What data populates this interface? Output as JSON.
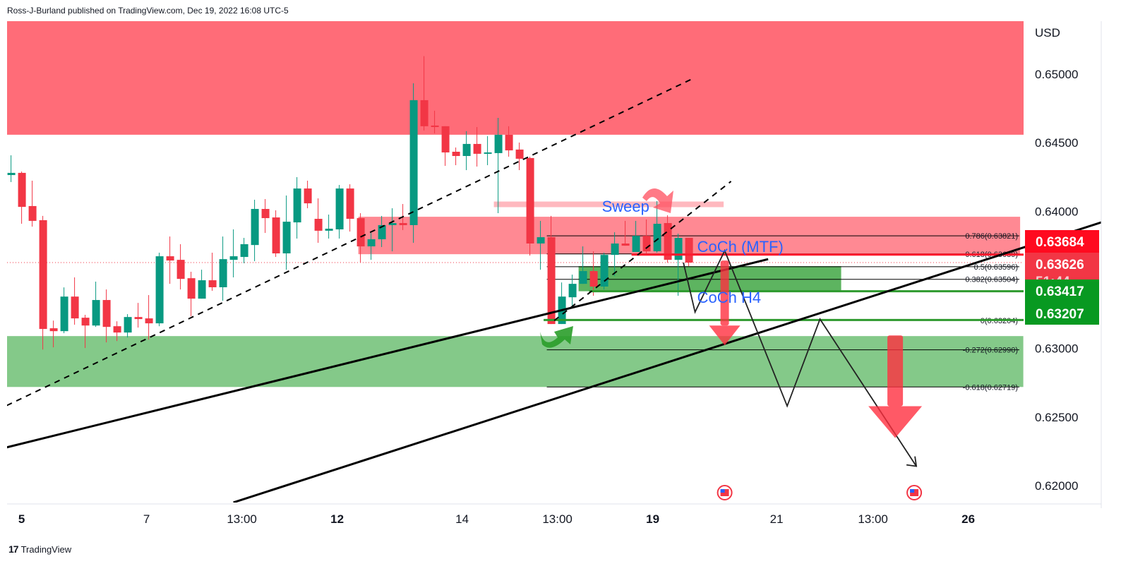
{
  "header": {
    "text": "Ross-J-Burland published on TradingView.com, Dec 19, 2022 16:08 UTC-5"
  },
  "footer": {
    "logo": "17",
    "brand": "TradingView"
  },
  "colors": {
    "up": "#089981",
    "down": "#f23645",
    "supply_zone": "#ff5f6d",
    "demand_zone": "#7ac47f",
    "annotation_text": "#2962ff",
    "tag_red": "#ff0a1f",
    "tag_last": "#f23645",
    "tag_green": "#089921"
  },
  "chart_data": {
    "type": "candlestick",
    "currency_label": "USD",
    "ylim": [
      0.6188,
      0.6539
    ],
    "y_ticks": [
      "0.65000",
      "0.64500",
      "0.64000",
      "0.63500",
      "0.63000",
      "0.62500",
      "0.62000"
    ],
    "x_ticks": [
      {
        "label": "5",
        "bar": 1,
        "bold": true
      },
      {
        "label": "7",
        "bar": 12.8,
        "bold": false
      },
      {
        "label": "13:00",
        "bar": 21.8,
        "bold": false
      },
      {
        "label": "12",
        "bar": 30.8,
        "bold": true
      },
      {
        "label": "14",
        "bar": 42.6,
        "bold": false
      },
      {
        "label": "13:00",
        "bar": 51.6,
        "bold": false
      },
      {
        "label": "19",
        "bar": 60.6,
        "bold": true
      },
      {
        "label": "21",
        "bar": 72.3,
        "bold": false
      },
      {
        "label": "13:00",
        "bar": 81.4,
        "bold": false
      },
      {
        "label": "26",
        "bar": 90.4,
        "bold": true
      }
    ],
    "ohlc": [
      [
        0.64264,
        0.64408,
        0.64213,
        0.6428
      ],
      [
        0.6428,
        0.6429,
        0.63909,
        0.64032
      ],
      [
        0.64038,
        0.64223,
        0.63888,
        0.6393
      ],
      [
        0.63935,
        0.63966,
        0.62992,
        0.63142
      ],
      [
        0.63147,
        0.63203,
        0.63008,
        0.63126
      ],
      [
        0.63126,
        0.63445,
        0.63111,
        0.63378
      ],
      [
        0.63378,
        0.63518,
        0.63173,
        0.63219
      ],
      [
        0.63224,
        0.63245,
        0.63003,
        0.63167
      ],
      [
        0.63167,
        0.63487,
        0.63157,
        0.63353
      ],
      [
        0.63353,
        0.6343,
        0.63044,
        0.63157
      ],
      [
        0.63162,
        0.63198,
        0.63054,
        0.63116
      ],
      [
        0.63116,
        0.6325,
        0.6308,
        0.63229
      ],
      [
        0.63229,
        0.63332,
        0.63152,
        0.63214
      ],
      [
        0.63219,
        0.63389,
        0.63064,
        0.63183
      ],
      [
        0.63183,
        0.63698,
        0.63162,
        0.63672
      ],
      [
        0.63672,
        0.63816,
        0.63471,
        0.63641
      ],
      [
        0.63646,
        0.6376,
        0.6343,
        0.63507
      ],
      [
        0.63512,
        0.63559,
        0.63234,
        0.63363
      ],
      [
        0.63363,
        0.63574,
        0.63363,
        0.63497
      ],
      [
        0.63497,
        0.63698,
        0.6342,
        0.63446
      ],
      [
        0.63446,
        0.63816,
        0.63348,
        0.63651
      ],
      [
        0.63646,
        0.63868,
        0.63518,
        0.63672
      ],
      [
        0.63667,
        0.63806,
        0.63621,
        0.6376
      ],
      [
        0.63754,
        0.64084,
        0.63636,
        0.64017
      ],
      [
        0.64017,
        0.64089,
        0.63842,
        0.6395
      ],
      [
        0.63955,
        0.64007,
        0.63667,
        0.63693
      ],
      [
        0.63693,
        0.64115,
        0.63574,
        0.63924
      ],
      [
        0.63919,
        0.64249,
        0.63801,
        0.64166
      ],
      [
        0.64166,
        0.64223,
        0.64022,
        0.64058
      ],
      [
        0.63945,
        0.64094,
        0.6377,
        0.63858
      ],
      [
        0.63858,
        0.63976,
        0.63801,
        0.63873
      ],
      [
        0.63868,
        0.64192,
        0.63801,
        0.64166
      ],
      [
        0.64166,
        0.64197,
        0.63852,
        0.63945
      ],
      [
        0.6395,
        0.63986,
        0.63626,
        0.63744
      ],
      [
        0.63744,
        0.63842,
        0.63646,
        0.63796
      ],
      [
        0.63796,
        0.63966,
        0.63739,
        0.63899
      ],
      [
        0.63899,
        0.64022,
        0.63708,
        0.63914
      ],
      [
        0.63914,
        0.64053,
        0.63863,
        0.63899
      ],
      [
        0.63899,
        0.64933,
        0.6377,
        0.6481
      ],
      [
        0.6481,
        0.65131,
        0.64589,
        0.6462
      ],
      [
        0.64625,
        0.64733,
        0.64568,
        0.64614
      ],
      [
        0.6462,
        0.6462,
        0.64331,
        0.64429
      ],
      [
        0.64434,
        0.64465,
        0.64336,
        0.64403
      ],
      [
        0.64403,
        0.64584,
        0.643,
        0.64491
      ],
      [
        0.64491,
        0.64614,
        0.64326,
        0.64419
      ],
      [
        0.64419,
        0.64548,
        0.64336,
        0.64429
      ],
      [
        0.64424,
        0.64681,
        0.63986,
        0.64558
      ],
      [
        0.64558,
        0.6462,
        0.64398,
        0.64444
      ],
      [
        0.6445,
        0.64501,
        0.643,
        0.64383
      ],
      [
        0.64388,
        0.64398,
        0.63677,
        0.63765
      ],
      [
        0.63765,
        0.6393,
        0.63574,
        0.63811
      ],
      [
        0.63811,
        0.63966,
        0.63178,
        0.63178
      ],
      [
        0.63178,
        0.63481,
        0.63178,
        0.63378
      ],
      [
        0.63373,
        0.63538,
        0.63312,
        0.63471
      ],
      [
        0.63471,
        0.63744,
        0.63471,
        0.63564
      ],
      [
        0.63564,
        0.63708,
        0.63384,
        0.63451
      ],
      [
        0.63451,
        0.63698,
        0.6343,
        0.63682
      ],
      [
        0.63682,
        0.63847,
        0.63528,
        0.63765
      ],
      [
        0.63765,
        0.6393,
        0.63749,
        0.63749
      ],
      [
        0.63703,
        0.6393,
        0.63703,
        0.63821
      ],
      [
        0.63821,
        0.6394,
        0.63687,
        0.63708
      ],
      [
        0.63708,
        0.64074,
        0.63698,
        0.63909
      ],
      [
        0.63914,
        0.63971,
        0.63626,
        0.63646
      ],
      [
        0.63646,
        0.63837,
        0.63384,
        0.63806
      ],
      [
        0.63806,
        0.63806,
        0.636,
        0.63626
      ]
    ],
    "zones": [
      {
        "name": "supply-zone-top",
        "bar_from": -1,
        "bar_to": 96,
        "price_top": 0.65387,
        "price_bottom": 0.64558,
        "color": "#ff5f6d"
      },
      {
        "name": "supply-zone-mid",
        "bar_from": 32.8,
        "bar_to": 95.3,
        "price_top": 0.6396,
        "price_bottom": 0.63687,
        "color": "#ff7f8a"
      },
      {
        "name": "sweep-band",
        "bar_from": 45.6,
        "bar_to": 67.3,
        "price_top": 0.64071,
        "price_bottom": 0.6403,
        "color": "#ffb3ba"
      },
      {
        "name": "demand-zone-small",
        "bar_from": 53.6,
        "bar_to": 78.4,
        "price_top": 0.636,
        "price_bottom": 0.63417,
        "color": "#4fae52"
      },
      {
        "name": "demand-zone-bottom",
        "bar_from": -1,
        "bar_to": 95.6,
        "price_top": 0.6309,
        "price_bottom": 0.62719,
        "color": "#7ac47f"
      }
    ],
    "fib_levels": [
      {
        "label": "0.786(0.63821)",
        "price": 0.63821
      },
      {
        "label": "0.618(0.63689)",
        "price": 0.63689
      },
      {
        "label": "0.5(0.63596)",
        "price": 0.63596
      },
      {
        "label": "0.382(0.63504)",
        "price": 0.63504
      },
      {
        "label": "0(0.63204)",
        "price": 0.63204
      },
      {
        "label": "-0.272(0.62990)",
        "price": 0.6299
      },
      {
        "label": "-0.618(0.62719)",
        "price": 0.62719
      }
    ],
    "fib_bar_from": 50.6,
    "horizontal_lines": [
      {
        "price": 0.63684,
        "bar_from": 58.6,
        "color": "#ff1a2e"
      },
      {
        "price": 0.63417,
        "bar_from": 54.6,
        "color": "#2e9a2e"
      },
      {
        "price": 0.63207,
        "bar_from": 50.3,
        "color": "#2e9a2e"
      }
    ],
    "trend_lines": [
      {
        "dashed": true,
        "points": [
          [
            -0.4,
            0.62584
          ],
          [
            64.3,
            0.64964
          ]
        ]
      },
      {
        "dashed": true,
        "points": [
          [
            51.3,
            0.63203
          ],
          [
            68,
            0.64218
          ]
        ]
      },
      {
        "dashed": false,
        "points": [
          [
            -0.4,
            0.62279
          ],
          [
            71.5,
            0.63651
          ]
        ]
      },
      {
        "dashed": false,
        "points": [
          [
            21,
            0.61877
          ],
          [
            103,
            0.6392
          ]
        ]
      }
    ],
    "projection_path": [
      [
        63.5,
        0.63626
      ],
      [
        64.6,
        0.63265
      ],
      [
        67.4,
        0.63713
      ],
      [
        73.3,
        0.6258
      ],
      [
        76.4,
        0.63214
      ],
      [
        85.5,
        0.62141
      ]
    ],
    "down_arrows": [
      {
        "bar": 67.4,
        "from": 0.63641,
        "to": 0.63023,
        "size": "small"
      },
      {
        "bar": 83.5,
        "from": 0.63095,
        "to": 0.62347,
        "size": "large"
      }
    ],
    "annotations": [
      {
        "text": "Sweep",
        "bar": 55.8,
        "price": 0.63996
      },
      {
        "text": "CoCh (MTF)",
        "bar": 64.8,
        "price": 0.63703
      },
      {
        "text": "CoCh H4",
        "bar": 64.8,
        "price": 0.63332
      }
    ],
    "events": [
      {
        "bar": 67.4,
        "icon": "us-flag-icon"
      },
      {
        "bar": 85.3,
        "icon": "us-flag-icon"
      }
    ],
    "price_tags": [
      {
        "value": "0.63684",
        "sub": "",
        "color": "#ff0a1f"
      },
      {
        "value": "0.63626",
        "sub": "51:44",
        "color": "#f23645"
      },
      {
        "value": "0.63417",
        "sub": "",
        "color": "#089921"
      },
      {
        "value": "0.63207",
        "sub": "",
        "color": "#089921"
      }
    ],
    "last_price": 0.63626
  }
}
